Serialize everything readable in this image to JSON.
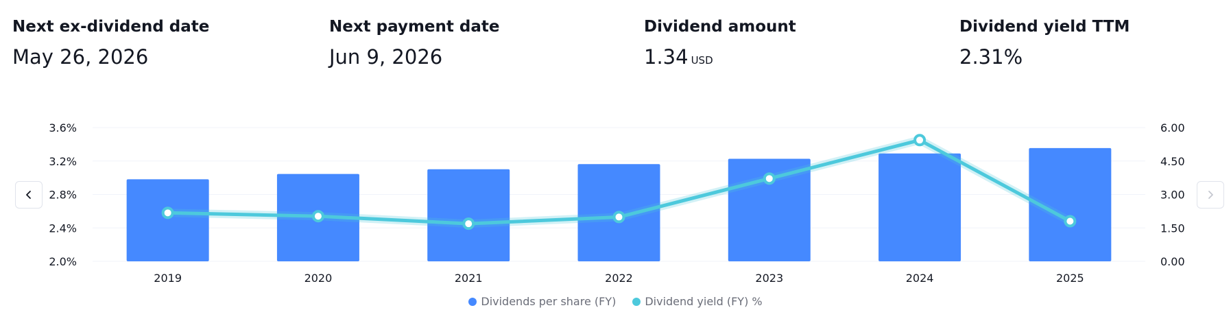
{
  "stats": [
    {
      "label": "Next ex-dividend date",
      "value": "May 26, 2026",
      "unit": ""
    },
    {
      "label": "Next payment date",
      "value": "Jun 9, 2026",
      "unit": ""
    },
    {
      "label": "Dividend amount",
      "value": "1.34",
      "unit": "USD"
    },
    {
      "label": "Dividend yield TTM",
      "value": "2.31%",
      "unit": ""
    }
  ],
  "nav": {
    "prev_icon": "chevron-left-icon",
    "next_icon": "chevron-right-icon"
  },
  "colors": {
    "bar": "#4589ff",
    "line": "#4dc9dc",
    "grid": "#f0f3fa",
    "axis_text": "#131722"
  },
  "chart_data": {
    "type": "bar",
    "categories": [
      "2019",
      "2020",
      "2021",
      "2022",
      "2023",
      "2024",
      "2025"
    ],
    "series": [
      {
        "name": "Dividends per share (FY)",
        "type": "bar",
        "axis": "right",
        "values": [
          3.68,
          3.92,
          4.13,
          4.36,
          4.6,
          4.84,
          5.08
        ]
      },
      {
        "name": "Dividend yield (FY) %",
        "type": "line",
        "axis": "left",
        "values": [
          2.58,
          2.54,
          2.45,
          2.53,
          2.99,
          3.45,
          2.48
        ]
      }
    ],
    "y_left": {
      "ticks": [
        "3.6%",
        "3.2%",
        "2.8%",
        "2.4%",
        "2.0%"
      ],
      "min": 2.0,
      "max": 3.6
    },
    "y_right": {
      "ticks": [
        "6.00",
        "4.50",
        "3.00",
        "1.50",
        "0.00"
      ],
      "min": 0,
      "max": 6
    },
    "grid": true,
    "legend": "bottom-center"
  }
}
